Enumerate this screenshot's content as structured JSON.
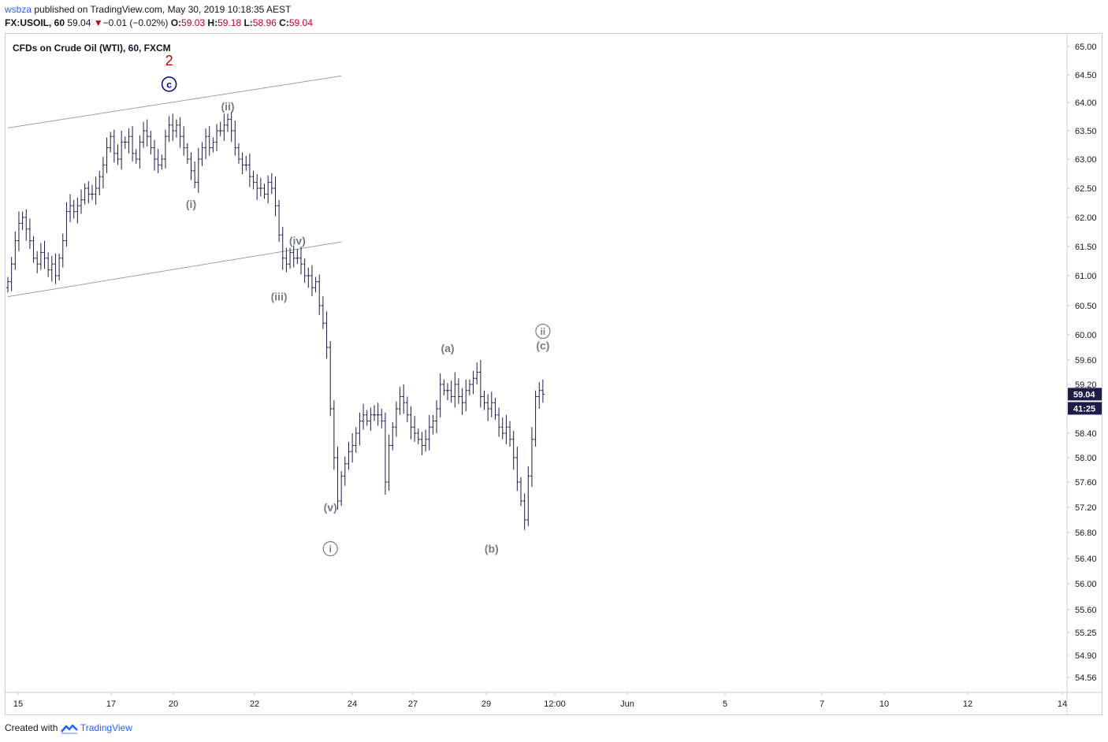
{
  "header": {
    "user": "wsbza",
    "published": " published on TradingView.com, May 30, 2019 10:18:35 AEST",
    "symbol": "FX:USOIL, 60",
    "price": "59.04",
    "change_arrow": "▼",
    "change": "−0.01 (−0.02%)",
    "o_label": "O:",
    "o": "59.03",
    "h_label": "H:",
    "h": "59.18",
    "l_label": "L:",
    "l": "58.96",
    "c_label": "C:",
    "c": "59.04"
  },
  "footer": {
    "created": "Created with",
    "brand": "TradingView"
  },
  "colors": {
    "bars": "#1e1a4a",
    "wave_red": "#c00000",
    "wave_blue": "#00008b",
    "wave_gray": "#787b86",
    "channel": "#9aa0a8",
    "price_tag": "#1e1a4a"
  },
  "chart_data": {
    "type": "ohlc",
    "title": "CFDs on Crude Oil (WTI), 60, FXCM",
    "y_ticks": [
      "65.00",
      "64.50",
      "64.00",
      "63.50",
      "63.00",
      "62.50",
      "62.00",
      "61.50",
      "61.00",
      "60.50",
      "60.00",
      "59.60",
      "59.20",
      "58.80",
      "58.40",
      "58.00",
      "57.60",
      "57.20",
      "56.80",
      "56.40",
      "56.00",
      "55.60",
      "55.25",
      "54.90",
      "54.56"
    ],
    "x_ticks": [
      "15",
      "17",
      "20",
      "22",
      "24",
      "27",
      "29",
      "12:00",
      "Jun",
      "5",
      "7",
      "10",
      "12",
      "14"
    ],
    "last_price": "59.04",
    "countdown": "41:25",
    "close_series": [
      60.9,
      61.2,
      61.6,
      61.9,
      62.0,
      61.8,
      61.6,
      61.3,
      61.2,
      61.4,
      61.3,
      61.1,
      61.2,
      61.0,
      61.3,
      61.6,
      62.1,
      62.2,
      62.1,
      62.2,
      62.3,
      62.5,
      62.4,
      62.4,
      62.5,
      62.7,
      62.9,
      63.2,
      63.4,
      63.1,
      63.0,
      63.3,
      63.3,
      63.4,
      63.1,
      63.0,
      63.3,
      63.5,
      63.4,
      63.2,
      63.0,
      62.9,
      63.0,
      63.4,
      63.6,
      63.5,
      63.6,
      63.4,
      63.2,
      63.0,
      62.8,
      62.6,
      63.0,
      63.2,
      63.4,
      63.2,
      63.3,
      63.5,
      63.5,
      63.6,
      63.7,
      63.5,
      63.2,
      63.0,
      62.9,
      62.9,
      62.7,
      62.6,
      62.5,
      62.5,
      62.4,
      62.6,
      62.5,
      62.2,
      61.7,
      61.3,
      61.2,
      61.4,
      61.3,
      61.3,
      61.2,
      61.0,
      61.0,
      60.8,
      60.9,
      60.5,
      60.2,
      59.8,
      58.8,
      58.0,
      57.3,
      57.7,
      57.9,
      58.1,
      58.2,
      58.4,
      58.6,
      58.7,
      58.6,
      58.7,
      58.7,
      58.7,
      58.6,
      57.6,
      58.2,
      58.5,
      58.8,
      59.0,
      58.9,
      58.7,
      58.5,
      58.4,
      58.3,
      58.2,
      58.3,
      58.5,
      58.6,
      58.8,
      59.2,
      59.1,
      59.1,
      59.0,
      59.2,
      59.0,
      58.9,
      59.1,
      59.2,
      59.3,
      59.4,
      59.0,
      58.9,
      58.8,
      58.9,
      58.7,
      58.5,
      58.4,
      58.5,
      58.3,
      58.0,
      57.6,
      57.3,
      57.0,
      57.7,
      58.3,
      59.0,
      59.1,
      59.04
    ],
    "labels": [
      {
        "text": "2",
        "x_idx": 44,
        "price": 64.75,
        "style": "red"
      },
      {
        "text": "c",
        "x_idx": 44,
        "price": 64.33,
        "style": "blue-circle"
      },
      {
        "text": "(ii)",
        "x_idx": 60,
        "price": 63.93,
        "style": "gray"
      },
      {
        "text": "(i)",
        "x_idx": 50,
        "price": 62.23,
        "style": "gray"
      },
      {
        "text": "(iv)",
        "x_idx": 79,
        "price": 61.6,
        "style": "gray"
      },
      {
        "text": "(iii)",
        "x_idx": 74,
        "price": 60.65,
        "style": "gray"
      },
      {
        "text": "(v)",
        "x_idx": 88,
        "price": 57.2,
        "style": "gray"
      },
      {
        "text": "i",
        "x_idx": 88,
        "price": 56.55,
        "style": "gray-circle"
      },
      {
        "text": "(a)",
        "x_idx": 120,
        "price": 59.79,
        "style": "gray"
      },
      {
        "text": "(b)",
        "x_idx": 132,
        "price": 56.55,
        "style": "gray"
      },
      {
        "text": "ii",
        "x_idx": 146,
        "price": 60.06,
        "style": "gray-circle"
      },
      {
        "text": "(c)",
        "x_idx": 146,
        "price": 59.83,
        "style": "gray"
      }
    ],
    "channel_lines": [
      {
        "from": {
          "x_idx": 0,
          "price": 63.55
        },
        "to": {
          "x_idx": 91,
          "price": 64.48
        }
      },
      {
        "from": {
          "x_idx": 0,
          "price": 60.65
        },
        "to": {
          "x_idx": 91,
          "price": 61.58
        }
      }
    ]
  }
}
